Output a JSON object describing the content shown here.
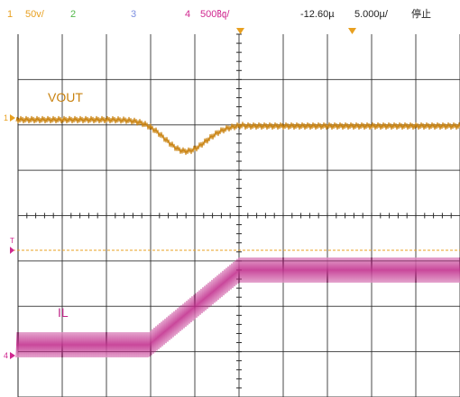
{
  "status_bar": {
    "ch1": {
      "number": "1",
      "scale": "50v/",
      "color": "#e8a020"
    },
    "ch2": {
      "number": "2",
      "color": "#52b84a"
    },
    "ch3": {
      "number": "3",
      "color": "#7c8ee0"
    },
    "ch4": {
      "number": "4",
      "scale": "500㏃/",
      "color": "#d02890"
    },
    "trigger_position": "-12.60µ",
    "timebase": "5.000µ/",
    "run_state": "停止"
  },
  "traces": {
    "vout": {
      "label": "VOUT",
      "color": "#c9820f"
    },
    "il": {
      "label": "IL",
      "color": "#c0288a"
    }
  },
  "markers": {
    "ch1_ground": {
      "label": "1",
      "color": "#e8a020"
    },
    "ch4_ground": {
      "label": "4",
      "color": "#d02890"
    },
    "trigger_level": {
      "label": "T",
      "color": "#e8a020"
    }
  },
  "display": {
    "grid_color": "#2a2a2a",
    "background": "#ffffff",
    "run_state_color": "#222222"
  }
}
